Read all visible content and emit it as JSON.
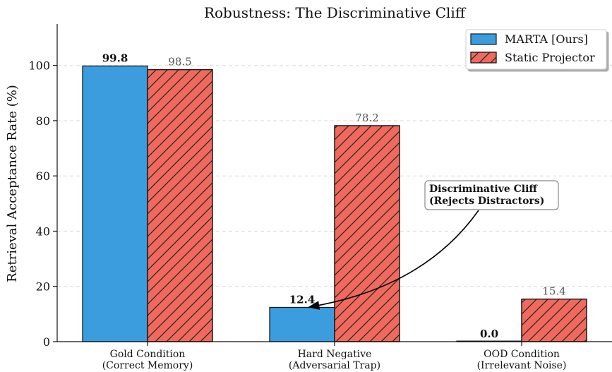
{
  "chart_data": {
    "type": "bar",
    "title": "Robustness: The Discriminative Cliff",
    "xlabel": "",
    "ylabel": "Retrieval Acceptance Rate (%)",
    "ylim": [
      0,
      115
    ],
    "yticks": [
      0,
      20,
      40,
      60,
      80,
      100
    ],
    "grid": "y-dashed",
    "legend_position": "top-right",
    "categories": [
      [
        "Gold Condition",
        "(Correct Memory)"
      ],
      [
        "Hard Negative",
        "(Adversarial Trap)"
      ],
      [
        "OOD Condition",
        "(Irrelevant Noise)"
      ]
    ],
    "series": [
      {
        "name": "MARTA [Ours]",
        "values": [
          99.8,
          12.4,
          0.0
        ],
        "labels": [
          "99.8",
          "12.4",
          "0.0"
        ],
        "color": "#3b9ddd",
        "hatch": false,
        "label_bold": true
      },
      {
        "name": "Static Projector",
        "values": [
          98.5,
          78.2,
          15.4
        ],
        "labels": [
          "98.5",
          "78.2",
          "15.4"
        ],
        "color": "#ef6a5e",
        "hatch": true,
        "label_bold": false
      }
    ],
    "annotation": {
      "lines": [
        "Discriminative Cliff",
        "(Rejects Distractors)"
      ],
      "target_category": 1,
      "target_series": 0,
      "target_value": 12.4
    }
  }
}
